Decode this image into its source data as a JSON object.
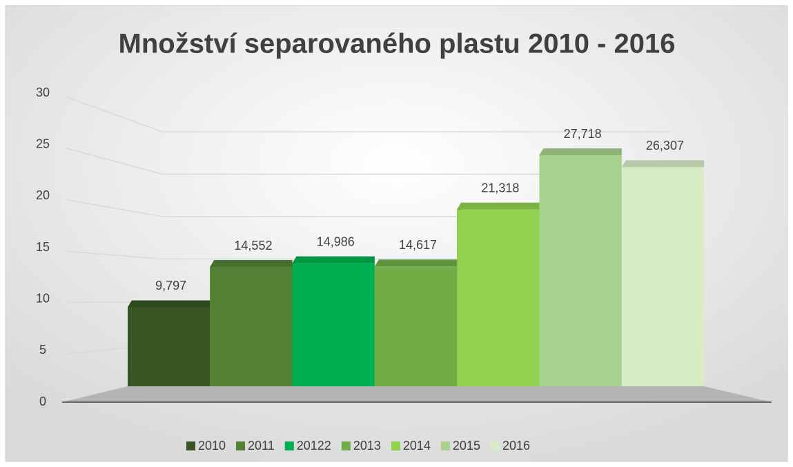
{
  "chart_data": {
    "type": "bar3d",
    "title": "Množství separovaného plastu 2010 - 2016",
    "series": [
      {
        "name": "2010",
        "color": "#375623",
        "values": [
          9.797
        ],
        "value_labels": [
          "9,797"
        ]
      },
      {
        "name": "2011",
        "color": "#548235",
        "values": [
          14.552
        ],
        "value_labels": [
          "14,552"
        ]
      },
      {
        "name": "20122",
        "color": "#00b050",
        "values": [
          14.986
        ],
        "value_labels": [
          "14,986"
        ]
      },
      {
        "name": "2013",
        "color": "#70ad47",
        "values": [
          14.617
        ],
        "value_labels": [
          "14,617"
        ]
      },
      {
        "name": "2014",
        "color": "#92d050",
        "values": [
          21.318
        ],
        "value_labels": [
          "21,318"
        ]
      },
      {
        "name": "2015",
        "color": "#a9d18e",
        "values": [
          27.718
        ],
        "value_labels": [
          "27,718"
        ]
      },
      {
        "name": "2016",
        "color": "#d6edc6",
        "values": [
          26.307
        ],
        "value_labels": [
          "26,307"
        ]
      }
    ],
    "ylim": [
      0,
      30
    ],
    "yticks": [
      0,
      5,
      10,
      15,
      20,
      25,
      30
    ],
    "grid": true,
    "legend": "bottom"
  }
}
